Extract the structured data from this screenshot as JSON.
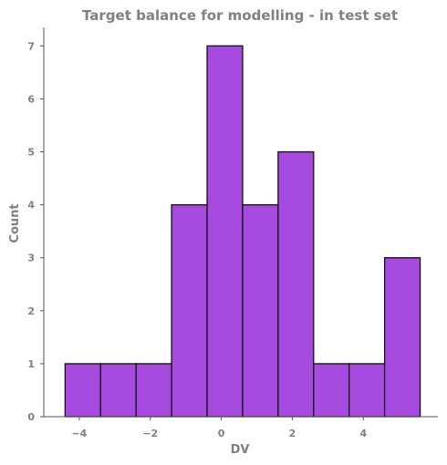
{
  "chart_data": {
    "type": "bar",
    "title": "Target balance for modelling - in test set",
    "xlabel": "DV",
    "ylabel": "Count",
    "bins": [
      {
        "start": -4.4,
        "end": -3.4,
        "count": 1
      },
      {
        "start": -3.4,
        "end": -2.4,
        "count": 1
      },
      {
        "start": -2.4,
        "end": -1.4,
        "count": 1
      },
      {
        "start": -1.4,
        "end": -0.4,
        "count": 4
      },
      {
        "start": -0.4,
        "end": 0.6,
        "count": 7
      },
      {
        "start": 0.6,
        "end": 1.6,
        "count": 4
      },
      {
        "start": 1.6,
        "end": 2.6,
        "count": 5
      },
      {
        "start": 2.6,
        "end": 3.6,
        "count": 1
      },
      {
        "start": 3.6,
        "end": 4.6,
        "count": 1
      },
      {
        "start": 4.6,
        "end": 5.6,
        "count": 3
      }
    ],
    "xticks": [
      "−4",
      "−2",
      "0",
      "2",
      "4"
    ],
    "xtick_values": [
      -4,
      -2,
      0,
      2,
      4
    ],
    "yticks": [
      "0",
      "1",
      "2",
      "3",
      "4",
      "5",
      "6",
      "7"
    ],
    "ytick_values": [
      0,
      1,
      2,
      3,
      4,
      5,
      6,
      7
    ],
    "xlim": [
      -5.0,
      6.1
    ],
    "ylim": [
      0,
      7.35
    ],
    "grid": false,
    "bar_color": "#a64ae0",
    "edge_color": "#111111"
  }
}
